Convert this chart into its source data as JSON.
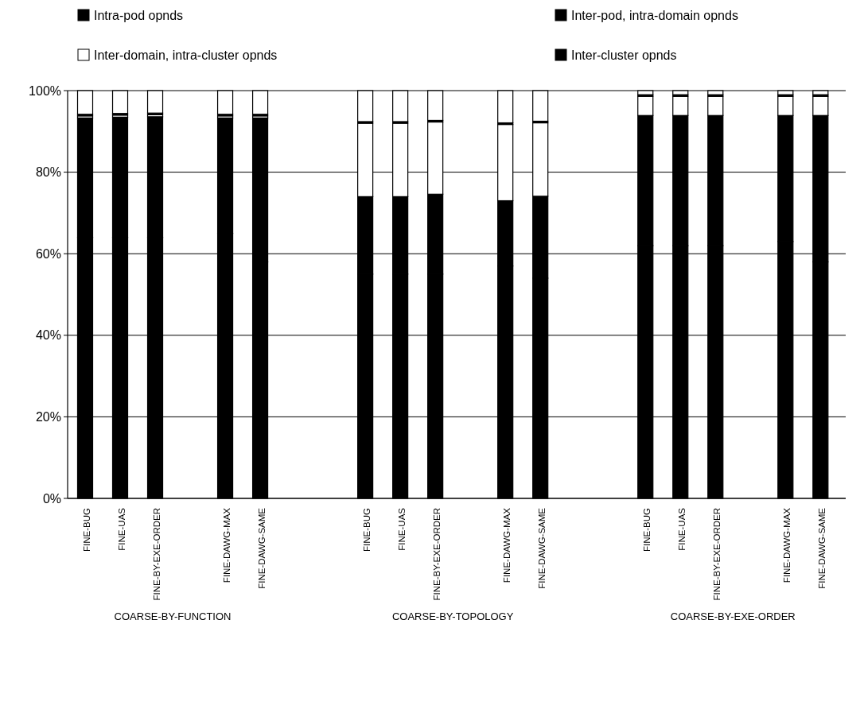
{
  "chart_data": {
    "type": "bar",
    "stacked": true,
    "categories": [
      "FINE-BUG",
      "FINE-UAS",
      "FINE-BY-EXE-ORDER",
      null,
      "FINE-DAWG-MAX",
      "FINE-DAWG-SAME",
      null,
      null,
      "FINE-BUG",
      "FINE-UAS",
      "FINE-BY-EXE-ORDER",
      null,
      "FINE-DAWG-MAX",
      "FINE-DAWG-SAME",
      null,
      null,
      "FINE-BUG",
      "FINE-UAS",
      "FINE-BY-EXE-ORDER",
      null,
      "FINE-DAWG-MAX",
      "FINE-DAWG-SAME"
    ],
    "series": [
      {
        "name": "Intra-pod opnds",
        "color": "#000000",
        "values": [
          64,
          64,
          64,
          null,
          65,
          58,
          null,
          null,
          55,
          55,
          55,
          null,
          57,
          54,
          null,
          null,
          62,
          62,
          62,
          null,
          63,
          58
        ]
      },
      {
        "name": "Inter-pod, intra-domain opnds",
        "color": "#000000",
        "values": [
          29.3,
          29.5,
          29.6,
          null,
          28.3,
          35.3,
          null,
          null,
          19,
          19,
          19.6,
          null,
          16,
          20.1,
          null,
          null,
          31.9,
          31.9,
          31.9,
          null,
          30.9,
          35.9
        ]
      },
      {
        "name": "Inter-domain, intra-cluster opnds",
        "color": "#ffffff",
        "values": [
          0.5,
          0.5,
          0.5,
          null,
          0.5,
          0.5,
          null,
          null,
          18,
          18,
          17.7,
          null,
          18.7,
          18,
          null,
          null,
          4.7,
          4.7,
          4.7,
          null,
          4.7,
          4.7
        ]
      },
      {
        "name": "Inter-cluster opnds",
        "color": "#000000",
        "values": [
          0.4,
          0.4,
          0.4,
          null,
          0.4,
          0.4,
          null,
          null,
          0.4,
          0.4,
          0.4,
          null,
          0.4,
          0.4,
          null,
          null,
          0.4,
          0.4,
          0.4,
          null,
          0.4,
          0.4
        ]
      },
      {
        "color": "#ffffff",
        "values": [
          5.8,
          5.6,
          5.5,
          null,
          5.8,
          5.8,
          null,
          null,
          7.6,
          7.6,
          7.3,
          null,
          7.9,
          7.5,
          null,
          null,
          1,
          1,
          1,
          null,
          1,
          1
        ]
      }
    ],
    "ylim": [
      0,
      100
    ],
    "yticks": [
      {
        "value": 0,
        "label": "0%"
      },
      {
        "value": 20,
        "label": "20%"
      },
      {
        "value": 40,
        "label": "40%"
      },
      {
        "value": 60,
        "label": "60%"
      },
      {
        "value": 80,
        "label": "80%"
      },
      {
        "value": 100,
        "label": "100%"
      }
    ],
    "grid": "y",
    "legend": "top",
    "annotations": [
      "COARSE-BY-FUNCTION",
      "COARSE-BY-TOPOLOGY",
      "COARSE-BY-EXE-ORDER"
    ]
  }
}
